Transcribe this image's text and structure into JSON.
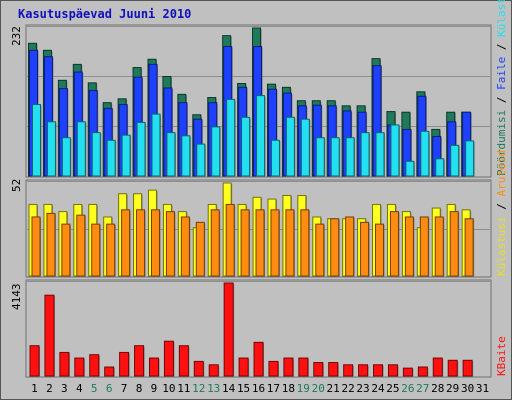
{
  "chart_data": {
    "type": "bar",
    "title": "Kasutuspäevad Juuni 2010",
    "categories": [
      "1",
      "2",
      "3",
      "4",
      "5",
      "6",
      "7",
      "8",
      "9",
      "10",
      "11",
      "12",
      "13",
      "14",
      "15",
      "16",
      "17",
      "18",
      "19",
      "20",
      "21",
      "22",
      "23",
      "24",
      "25",
      "26",
      "27",
      "28",
      "29",
      "30",
      "31"
    ],
    "weekend_days": [
      "5",
      "6",
      "12",
      "13",
      "19",
      "20",
      "26",
      "27"
    ],
    "panels": [
      {
        "name": "top",
        "ymax_label": "232",
        "legend": [
          "Pöördumisi",
          "Faile",
          "Külastatud lehti"
        ],
        "series": [
          {
            "name": "Pöördumisi",
            "color": "#1e7a5a",
            "values": [
              208,
              197,
              150,
              175,
              146,
              115,
              121,
              170,
              183,
              156,
              128,
              96,
              123,
              220,
              145,
              232,
              144,
              139,
              118,
              118,
              118,
              110,
              110,
              184,
              101,
              100,
              132,
              73,
              100,
              100,
              0
            ]
          },
          {
            "name": "Faile",
            "color": "#1e40ff",
            "values": [
              197,
              187,
              137,
              163,
              134,
              106,
              112,
              155,
              175,
              138,
              115,
              89,
              115,
              203,
              139,
              203,
              136,
              130,
              110,
              111,
              110,
              102,
              100,
              173,
              80,
              73,
              125,
              62,
              85,
              100,
              0
            ]
          },
          {
            "name": "Külastatud lehti",
            "color": "#22e0f0",
            "values": [
              112,
              85,
              60,
              85,
              68,
              56,
              64,
              84,
              97,
              68,
              63,
              50,
              77,
              120,
              92,
              126,
              56,
              92,
              89,
              60,
              60,
              60,
              68,
              68,
              80,
              23,
              70,
              27,
              48,
              55,
              0
            ]
          }
        ]
      },
      {
        "name": "middle",
        "ymax_label": "52",
        "legend": [
          "Külastusi",
          "Aruteid"
        ],
        "series": [
          {
            "name": "Külastusi",
            "color": "#ffff20",
            "values": [
              40,
              40,
              36,
              40,
              40,
              33,
              46,
              46,
              48,
              40,
              36,
              27,
              40,
              52,
              40,
              44,
              43,
              45,
              45,
              33,
              32,
              32,
              32,
              40,
              40,
              36,
              27,
              38,
              40,
              37,
              0
            ]
          },
          {
            "name": "Aruteid",
            "color": "#ff8c10",
            "values": [
              33,
              35,
              29,
              34,
              29,
              29,
              37,
              37,
              37,
              36,
              33,
              30,
              37,
              40,
              37,
              37,
              37,
              37,
              37,
              29,
              32,
              33,
              30,
              29,
              36,
              33,
              33,
              33,
              36,
              32,
              0
            ]
          }
        ]
      },
      {
        "name": "bottom",
        "ymax_label": "4143",
        "legend": [
          "KBaite"
        ],
        "series": [
          {
            "name": "KBaite",
            "color": "#ff1010",
            "values": [
              1350,
              3600,
              1050,
              800,
              950,
              400,
              1050,
              1350,
              800,
              1550,
              1350,
              650,
              500,
              4143,
              800,
              1500,
              650,
              800,
              800,
              600,
              600,
              500,
              500,
              500,
              500,
              350,
              400,
              800,
              700,
              700,
              0
            ]
          }
        ]
      }
    ],
    "colors": {
      "background": "#c0c0c0",
      "grid": "#8e8e8e",
      "title": "#1010c0",
      "weekend_label": "#1e7a5a"
    }
  }
}
